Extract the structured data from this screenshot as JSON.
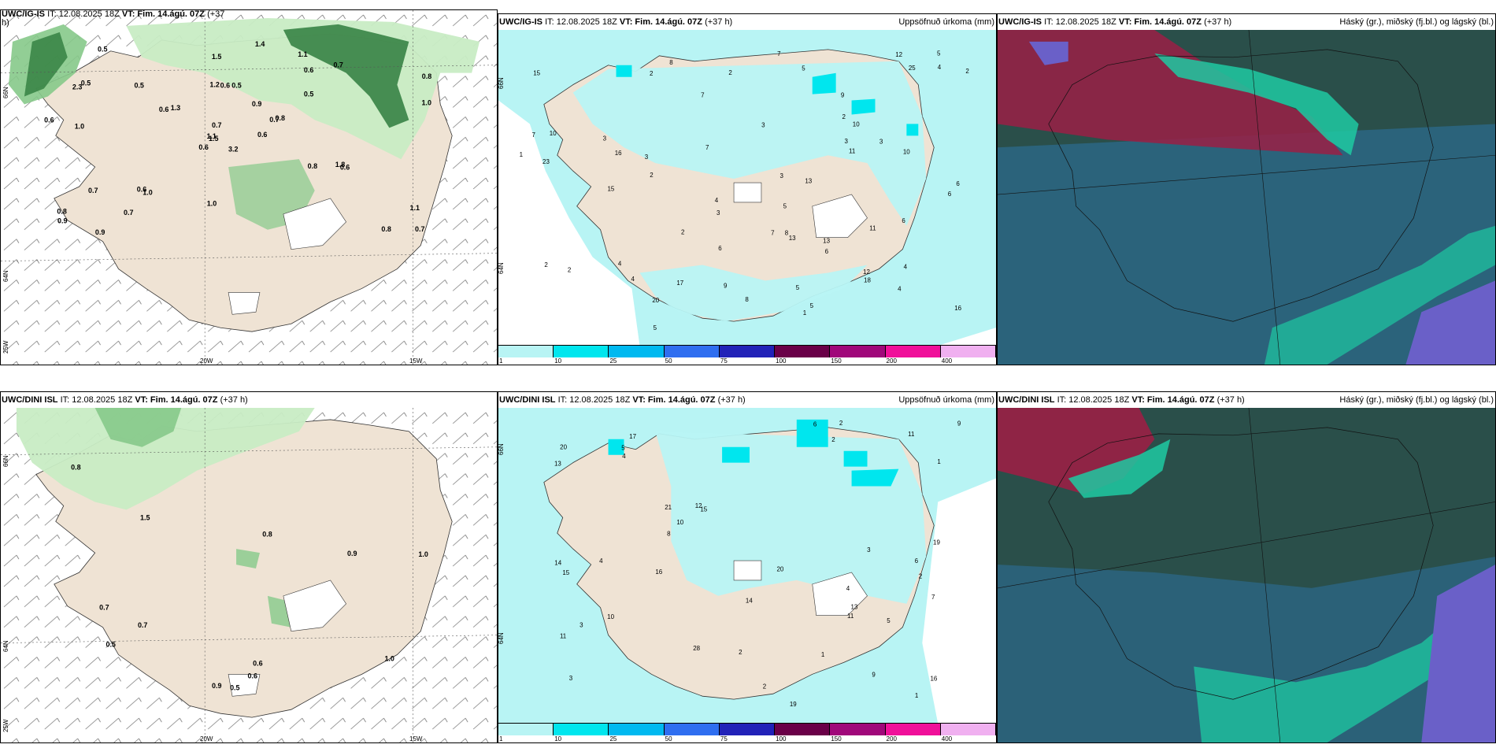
{
  "colors": {
    "land": "#efe3d4",
    "green_light": "#c8ecc4",
    "green_mid": "#86c98a",
    "green_dark": "#2f7d3d",
    "precip_light": "#b8f4f4",
    "precip_mid": "#7fe9ee",
    "cloud_dark": "#2a4f4a",
    "cloud_teal": "#1ec9a2",
    "cloud_red": "#9a1f45",
    "cloud_blue": "#2c6a8c",
    "cloud_violet": "#6a60c8"
  },
  "panels": {
    "p1": {
      "model": "UWC/IG-IS",
      "it": "IT: 12.08.2025 18Z",
      "vt": "VT: Fim. 14.ágú. 07Z",
      "lead": "(+37",
      "lead_cont": "h)",
      "ticks": {
        "lat_a": "66N",
        "lat_b": "64N",
        "lat_c": "25W",
        "lon_a": "20W",
        "lon_b": "15W"
      },
      "values": [
        "3.2",
        "2.3",
        "1.5",
        "0.8",
        "0.7",
        "1.0",
        "1.1",
        "0.5",
        "0.6",
        "0.6",
        "0.5",
        "0.7",
        "1.0",
        "0.8",
        "0.6",
        "0.5",
        "0.9",
        "1.2",
        "0.9",
        "0.7",
        "1.3",
        "0.9",
        "0.7",
        "0.6",
        "0.8",
        "0.6",
        "0.5",
        "1.5",
        "0.6",
        "0.8",
        "1.0",
        "1.1",
        "1.0",
        "0.7",
        "0.5",
        "0.7",
        "0.6",
        "0.8",
        "1.1",
        "1.8",
        "1.4",
        "0.6"
      ]
    },
    "p2": {
      "model": "UWC/IG-IS",
      "it": "IT: 12.08.2025 18Z",
      "vt": "VT: Fim. 14.ágú. 07Z",
      "lead": "(+37 h)",
      "title": "Uppsöfnuð úrkoma (mm)",
      "ticks": {
        "lat_a": "66N",
        "lat_b": "64N"
      },
      "values": [
        "5",
        "2",
        "4",
        "3",
        "3",
        "5",
        "6",
        "2",
        "3",
        "4",
        "2",
        "7",
        "4",
        "8",
        "11",
        "12",
        "23",
        "25",
        "11",
        "10",
        "12",
        "13",
        "20",
        "18",
        "13",
        "10",
        "15",
        "16",
        "8",
        "7",
        "6",
        "5",
        "9",
        "17",
        "8",
        "9",
        "7",
        "10",
        "6",
        "13",
        "2",
        "3",
        "2",
        "4",
        "5",
        "6",
        "7",
        "6",
        "5",
        "4",
        "2",
        "3",
        "3",
        "2",
        "15",
        "16",
        "4",
        "7",
        "5",
        "2",
        "1",
        "1",
        "3"
      ]
    },
    "p3": {
      "model": "UWC/IG-IS",
      "it": "IT: 12.08.2025 18Z",
      "vt": "VT: Fim. 14.ágú. 07Z",
      "lead": "(+37 h)",
      "title": "Háský (gr.), miðský (fj.bl.) og lágský (bl.)"
    },
    "p4": {
      "model": "UWC/DINI ISL",
      "it": "IT: 12.08.2025 18Z",
      "vt": "VT: Fim. 14.ágú. 07Z",
      "lead": "(+37 h)",
      "ticks": {
        "lat_a": "66N",
        "lat_b": "64N",
        "lat_c": "25W",
        "lon_a": "20W",
        "lon_b": "15W"
      },
      "values": [
        "0.9",
        "0.6",
        "0.8",
        "0.8",
        "1.0",
        "0.5",
        "0.6",
        "0.7",
        "0.9",
        "1.5",
        "0.7",
        "1.0",
        "0.5"
      ]
    },
    "p5": {
      "model": "UWC/DINI ISL",
      "it": "IT: 12.08.2025 18Z",
      "vt": "VT: Fim. 14.ágú. 07Z",
      "lead": "(+37 h)",
      "title": "Uppsöfnuð úrkoma (mm)",
      "ticks": {
        "lat_a": "66N",
        "lat_b": "64N"
      },
      "values": [
        "4",
        "2",
        "3",
        "17",
        "15",
        "9",
        "11",
        "2",
        "21",
        "19",
        "13",
        "14",
        "20",
        "16",
        "28",
        "19",
        "14",
        "20",
        "12",
        "10",
        "9",
        "11",
        "8",
        "7",
        "6",
        "5",
        "13",
        "15",
        "4",
        "3",
        "2",
        "1",
        "10",
        "16",
        "6",
        "5",
        "11",
        "4",
        "2",
        "3",
        "1",
        "2",
        "1"
      ]
    },
    "p6": {
      "model": "UWC/DINI ISL",
      "it": "IT: 12.08.2025 18Z",
      "vt": "VT: Fim. 14.ágú. 07Z",
      "lead": "(+37 h)",
      "title": "Háský (gr.), miðský (fj.bl.) og lágský (bl.)"
    }
  },
  "legend": {
    "labels": [
      "1",
      "10",
      "25",
      "50",
      "75",
      "100",
      "150",
      "200",
      "400"
    ],
    "colors": [
      "#b8f4f4",
      "#00e6ee",
      "#00b9f0",
      "#2f6ef0",
      "#2222b8",
      "#6a0048",
      "#a0087a",
      "#f0109a",
      "#f0b0f0"
    ]
  }
}
